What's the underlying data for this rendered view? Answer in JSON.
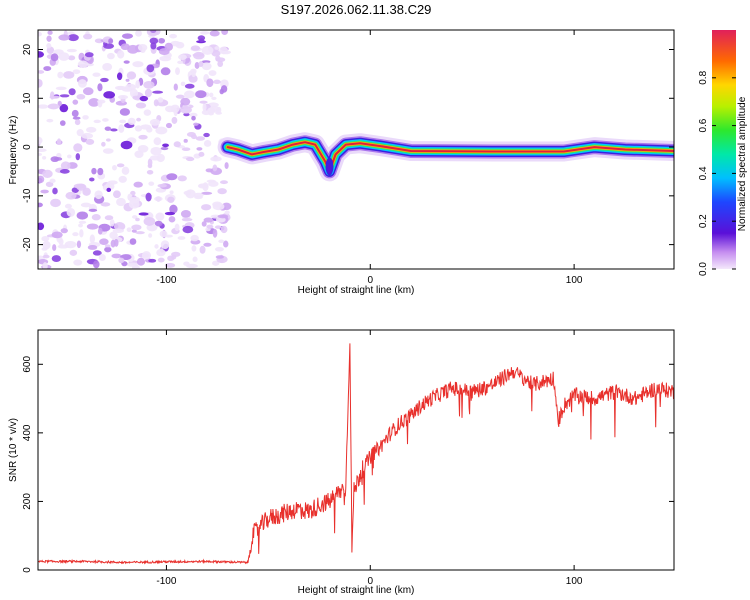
{
  "title": "S197.2026.062.11.38.C29",
  "colors": {
    "snr_line": "#e8302c",
    "noise_purple": "#7a2bd6",
    "ridge_core": "#e0203c"
  },
  "chart_data": [
    {
      "type": "heatmap",
      "name": "spectrogram",
      "xlabel": "Height of straight line (km)",
      "ylabel": "Frequency (Hz)",
      "xlim": [
        -163,
        149
      ],
      "ylim": [
        -25,
        24
      ],
      "xticks": [
        -100,
        0,
        100
      ],
      "yticks": [
        -20,
        -10,
        0,
        10,
        20
      ],
      "noise_region_x": [
        -163,
        -70
      ],
      "ridge": [
        {
          "x": -70,
          "f": 0.0
        },
        {
          "x": -65,
          "f": -0.5
        },
        {
          "x": -58,
          "f": -1.5
        },
        {
          "x": -52,
          "f": -1.0
        },
        {
          "x": -45,
          "f": -0.5
        },
        {
          "x": -38,
          "f": 0.5
        },
        {
          "x": -32,
          "f": 1.0
        },
        {
          "x": -27,
          "f": 0.5
        },
        {
          "x": -22,
          "f": -3.0
        },
        {
          "x": -20,
          "f": -5.0
        },
        {
          "x": -17,
          "f": -1.5
        },
        {
          "x": -12,
          "f": 0.5
        },
        {
          "x": -5,
          "f": 0.8
        },
        {
          "x": 5,
          "f": 0.2
        },
        {
          "x": 20,
          "f": -0.8
        },
        {
          "x": 60,
          "f": -0.9
        },
        {
          "x": 95,
          "f": -0.9
        },
        {
          "x": 110,
          "f": 0.0
        },
        {
          "x": 125,
          "f": -0.5
        },
        {
          "x": 149,
          "f": -0.8
        }
      ],
      "colorbar": {
        "label": "Normalized spectral amplitude",
        "ticks": [
          0.0,
          0.2,
          0.4,
          0.6,
          0.8
        ],
        "range": [
          0,
          1
        ]
      }
    },
    {
      "type": "line",
      "name": "snr",
      "xlabel": "Height of straight line (km)",
      "ylabel": "SNR (10 * v/v)",
      "xlim": [
        -163,
        149
      ],
      "ylim": [
        0,
        700
      ],
      "xticks": [
        -100,
        0,
        100
      ],
      "yticks": [
        0,
        200,
        400,
        600
      ],
      "series": [
        {
          "name": "SNR",
          "x": [
            -163,
            -140,
            -120,
            -100,
            -80,
            -60,
            -58,
            -55,
            -50,
            -45,
            -40,
            -35,
            -30,
            -25,
            -20,
            -15,
            -12,
            -10,
            -9,
            -8,
            -5,
            0,
            5,
            10,
            15,
            20,
            25,
            30,
            40,
            50,
            60,
            70,
            75,
            80,
            90,
            92,
            95,
            100,
            110,
            120,
            130,
            140,
            149
          ],
          "y": [
            25,
            25,
            22,
            24,
            25,
            22,
            100,
            120,
            150,
            160,
            170,
            180,
            170,
            190,
            200,
            230,
            240,
            680,
            60,
            230,
            280,
            330,
            360,
            400,
            430,
            450,
            480,
            500,
            530,
            520,
            540,
            580,
            560,
            540,
            560,
            430,
            480,
            510,
            500,
            520,
            500,
            530,
            520
          ]
        }
      ]
    }
  ]
}
